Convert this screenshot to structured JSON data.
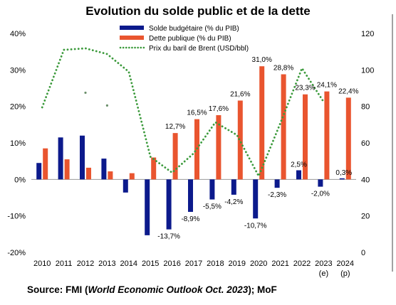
{
  "chart_data": {
    "type": "bar",
    "title": "Evolution du solde public et de la dette",
    "categories": [
      "2010",
      "2011",
      "2012",
      "2013",
      "2014",
      "2015",
      "2016",
      "2017",
      "2018",
      "2019",
      "2020",
      "2021",
      "2022",
      "2023",
      "2024"
    ],
    "category_sublabels": [
      "",
      "",
      "",
      "",
      "",
      "",
      "",
      "",
      "",
      "",
      "",
      "",
      "",
      "(e)",
      "(p)"
    ],
    "series": [
      {
        "name": "Solde budgétaire (% du PIB)",
        "color": "#0c1a8c",
        "axis": "left",
        "values": [
          4.5,
          11.5,
          12.0,
          5.7,
          -3.6,
          -15.3,
          -13.7,
          -8.9,
          -5.5,
          -4.2,
          -10.7,
          -2.3,
          2.5,
          -2.0,
          0.3
        ],
        "data_labels": [
          "",
          "",
          "",
          "",
          "",
          "",
          "-13,7%",
          "-8,9%",
          "-5,5%",
          "-4,2%",
          "-10,7%",
          "-2,3%",
          "2,5%",
          "-2,0%",
          "0,3%"
        ]
      },
      {
        "name": "Dette publique (% du PIB)",
        "color": "#e9552f",
        "axis": "left",
        "values": [
          8.5,
          5.5,
          3.2,
          2.2,
          1.7,
          6.0,
          12.7,
          16.5,
          17.6,
          21.6,
          31.0,
          28.8,
          23.3,
          24.1,
          22.4
        ],
        "data_labels": [
          "",
          "",
          "",
          "",
          "",
          "",
          "12,7%",
          "16,5%",
          "17,6%",
          "21,6%",
          "31,0%",
          "28,8%",
          "23,3%",
          "24,1%",
          "22,4%"
        ]
      },
      {
        "name": "Prix du baril de Brent (USD/bbl)",
        "color": "#3c9a3c",
        "axis": "right",
        "style": "dotted-line",
        "values": [
          79.5,
          111.0,
          111.8,
          108.7,
          99.0,
          52.4,
          43.7,
          54.3,
          71.3,
          64.3,
          41.8,
          70.8,
          100.9,
          82.5,
          null
        ]
      }
    ],
    "extra_points_right_axis": [
      {
        "category": "2012",
        "value": 87.5
      },
      {
        "category": "2013",
        "value": 80.5
      }
    ],
    "left_axis": {
      "min": -20,
      "max": 40,
      "step": 10,
      "tick_labels": [
        "-20%",
        "-10%",
        "0%",
        "10%",
        "20%",
        "30%",
        "40%"
      ]
    },
    "right_axis": {
      "min": 0,
      "max": 120,
      "step": 20,
      "tick_labels": [
        "0",
        "20",
        "40",
        "60",
        "80",
        "100",
        "120"
      ]
    },
    "legend_position": "top-center",
    "grid": false,
    "source": {
      "prefix": "Source: FMI (",
      "italic": "World Economic Outlook Oct. 2023",
      "suffix": "); MoF"
    }
  }
}
